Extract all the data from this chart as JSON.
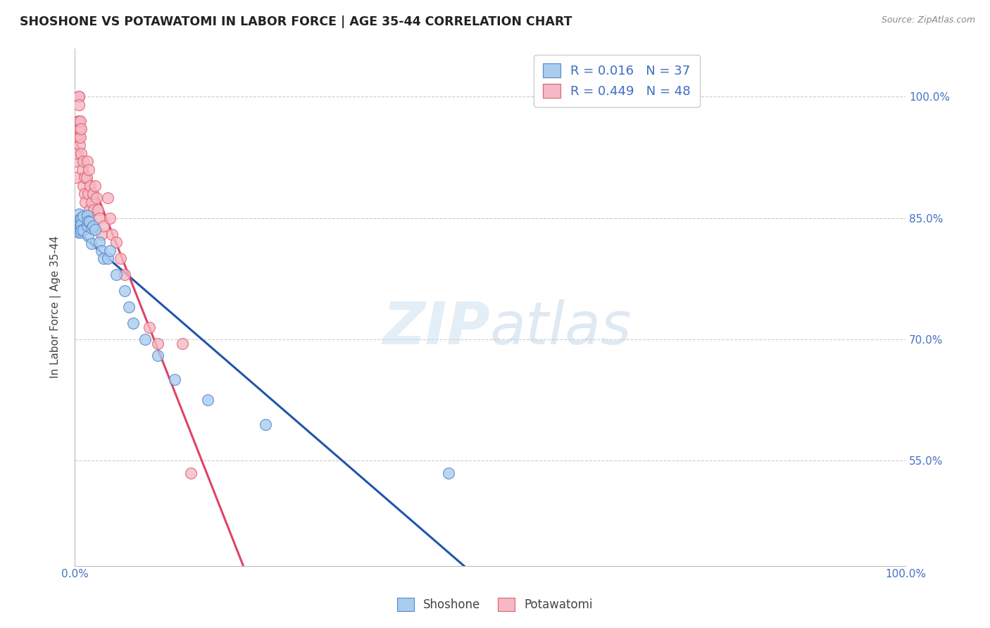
{
  "title": "SHOSHONE VS POTAWATOMI IN LABOR FORCE | AGE 35-44 CORRELATION CHART",
  "source": "Source: ZipAtlas.com",
  "ylabel": "In Labor Force | Age 35-44",
  "watermark_zip": "ZIP",
  "watermark_atlas": "atlas",
  "xlim": [
    0.0,
    1.0
  ],
  "ylim": [
    0.42,
    1.06
  ],
  "yticks": [
    0.55,
    0.7,
    0.85,
    1.0
  ],
  "ytick_labels": [
    "55.0%",
    "70.0%",
    "85.0%",
    "100.0%"
  ],
  "xtick_positions": [
    0.0,
    0.2,
    0.4,
    0.6,
    0.8,
    1.0
  ],
  "xtick_labels": [
    "0.0%",
    "",
    "",
    "",
    "",
    "100.0%"
  ],
  "legend_shoshone_R": "0.016",
  "legend_shoshone_N": "37",
  "legend_potawatomi_R": "0.449",
  "legend_potawatomi_N": "48",
  "shoshone_color": "#aaccee",
  "potawatomi_color": "#f5b8c4",
  "shoshone_edge_color": "#5588cc",
  "potawatomi_edge_color": "#e06070",
  "shoshone_line_color": "#2255aa",
  "potawatomi_line_color": "#dd4466",
  "background_color": "#ffffff",
  "grid_color": "#cccccc",
  "tick_color": "#4472c4",
  "title_color": "#222222",
  "ylabel_color": "#444444",
  "source_color": "#888888",
  "shoshone_x": [
    0.005,
    0.005,
    0.005,
    0.005,
    0.005,
    0.007,
    0.007,
    0.007,
    0.008,
    0.008,
    0.008,
    0.01,
    0.01,
    0.015,
    0.015,
    0.016,
    0.016,
    0.018,
    0.02,
    0.02,
    0.022,
    0.025,
    0.03,
    0.032,
    0.035,
    0.04,
    0.042,
    0.05,
    0.06,
    0.065,
    0.07,
    0.085,
    0.1,
    0.12,
    0.16,
    0.23,
    0.45
  ],
  "shoshone_y": [
    0.855,
    0.848,
    0.842,
    0.838,
    0.832,
    0.847,
    0.84,
    0.832,
    0.85,
    0.842,
    0.835,
    0.852,
    0.835,
    0.853,
    0.84,
    0.846,
    0.828,
    0.845,
    0.838,
    0.818,
    0.84,
    0.836,
    0.82,
    0.81,
    0.8,
    0.8,
    0.81,
    0.78,
    0.76,
    0.74,
    0.72,
    0.7,
    0.68,
    0.65,
    0.625,
    0.595,
    0.535
  ],
  "potawatomi_x": [
    0.002,
    0.002,
    0.003,
    0.003,
    0.004,
    0.004,
    0.005,
    0.005,
    0.005,
    0.005,
    0.005,
    0.006,
    0.006,
    0.007,
    0.007,
    0.008,
    0.008,
    0.009,
    0.01,
    0.01,
    0.012,
    0.012,
    0.013,
    0.014,
    0.015,
    0.016,
    0.017,
    0.018,
    0.019,
    0.02,
    0.022,
    0.023,
    0.025,
    0.026,
    0.028,
    0.03,
    0.032,
    0.035,
    0.04,
    0.042,
    0.045,
    0.05,
    0.055,
    0.06,
    0.09,
    0.1,
    0.13,
    0.14
  ],
  "potawatomi_y": [
    0.92,
    0.9,
    0.95,
    0.93,
    0.97,
    0.95,
    1.0,
    1.0,
    0.99,
    0.97,
    0.95,
    0.96,
    0.94,
    0.97,
    0.95,
    0.96,
    0.93,
    0.91,
    0.92,
    0.89,
    0.9,
    0.88,
    0.87,
    0.9,
    0.92,
    0.88,
    0.91,
    0.86,
    0.89,
    0.87,
    0.88,
    0.86,
    0.89,
    0.875,
    0.86,
    0.85,
    0.83,
    0.84,
    0.875,
    0.85,
    0.83,
    0.82,
    0.8,
    0.78,
    0.715,
    0.695,
    0.695,
    0.535
  ]
}
